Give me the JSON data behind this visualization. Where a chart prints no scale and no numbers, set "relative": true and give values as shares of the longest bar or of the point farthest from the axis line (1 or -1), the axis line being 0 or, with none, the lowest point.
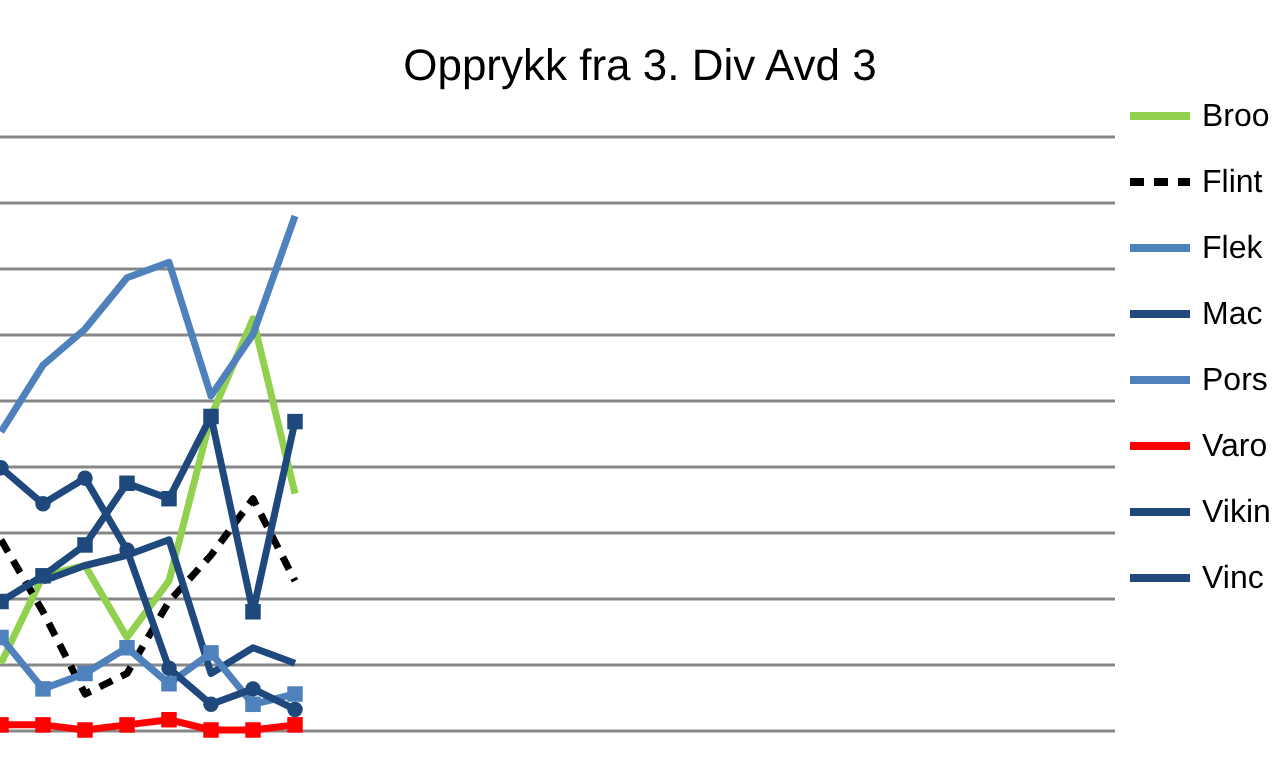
{
  "chart_data": {
    "type": "line",
    "title": "Opprykk fra 3. Div Avd 3",
    "relative": true,
    "grid": "y",
    "legend": "right",
    "categories": [
      null,
      null,
      null,
      null,
      null,
      null,
      null,
      null,
      null,
      null,
      null,
      null,
      null,
      null,
      null,
      null,
      null,
      null,
      null,
      null,
      null,
      null,
      null,
      null,
      null,
      null,
      null
    ],
    "series": [
      {
        "name": "Broo",
        "color": "#92d050",
        "marker": "none",
        "line_style": "solid",
        "values": [
          0.13,
          0.3,
          0.32,
          0.18,
          0.29,
          0.61,
          0.8,
          0.46,
          null,
          null,
          null,
          null,
          null,
          null,
          null,
          null,
          null,
          null,
          null,
          null,
          null,
          null,
          null,
          null,
          null,
          null,
          null
        ]
      },
      {
        "name": "Flint",
        "color": "#000000",
        "marker": "none",
        "line_style": "dashed",
        "values": [
          0.37,
          0.23,
          0.07,
          0.11,
          0.25,
          0.34,
          0.45,
          0.29,
          null,
          null,
          null,
          null,
          null,
          null,
          null,
          null,
          null,
          null,
          null,
          null,
          null,
          null,
          null,
          null,
          null,
          null,
          null
        ]
      },
      {
        "name": "Flek",
        "color": "#4f81bd",
        "marker": "none",
        "line_style": "solid",
        "values": [
          0.58,
          0.71,
          0.78,
          0.88,
          0.91,
          0.65,
          0.77,
          1,
          null,
          null,
          null,
          null,
          null,
          null,
          null,
          null,
          null,
          null,
          null,
          null,
          null,
          null,
          null,
          null,
          null,
          null,
          null
        ]
      },
      {
        "name": "Mac",
        "color": "#1f497d",
        "marker": "none",
        "line_style": "solid",
        "values": [
          null,
          0.29,
          0.32,
          0.34,
          0.37,
          0.11,
          0.16,
          0.13,
          null,
          null,
          null,
          null,
          null,
          null,
          null,
          null,
          null,
          null,
          null,
          null,
          null,
          null,
          null,
          null,
          null,
          null,
          null
        ]
      },
      {
        "name": "Pors",
        "color": "#4f81bd",
        "marker": "square",
        "line_style": "solid",
        "values": [
          0.18,
          0.08,
          0.11,
          0.16,
          0.09,
          0.15,
          0.05,
          0.07,
          null,
          null,
          null,
          null,
          null,
          null,
          null,
          null,
          null,
          null,
          null,
          null,
          null,
          null,
          null,
          null,
          null,
          null,
          null
        ]
      },
      {
        "name": "Varo",
        "color": "#ff0000",
        "marker": "square",
        "line_style": "solid",
        "values": [
          0.01,
          0.01,
          0.0,
          0.01,
          0.02,
          0.0,
          0.0,
          0.01,
          null,
          null,
          null,
          null,
          null,
          null,
          null,
          null,
          null,
          null,
          null,
          null,
          null,
          null,
          null,
          null,
          null,
          null,
          null
        ]
      },
      {
        "name": "Vikin",
        "color": "#1f497d",
        "marker": "square",
        "line_style": "solid",
        "values": [
          0.25,
          0.3,
          0.36,
          0.48,
          0.45,
          0.61,
          0.23,
          0.6,
          null,
          null,
          null,
          null,
          null,
          null,
          null,
          null,
          null,
          null,
          null,
          null,
          null,
          null,
          null,
          null,
          null,
          null,
          null
        ]
      },
      {
        "name": "Vinc",
        "color": "#1f497d",
        "marker": "circle",
        "line_style": "solid",
        "values": [
          0.51,
          0.44,
          0.49,
          0.35,
          0.12,
          0.05,
          0.08,
          0.04,
          null,
          null,
          null,
          null,
          null,
          null,
          null,
          null,
          null,
          null,
          null,
          null,
          null,
          null,
          null,
          null,
          null,
          null,
          null
        ]
      }
    ]
  }
}
